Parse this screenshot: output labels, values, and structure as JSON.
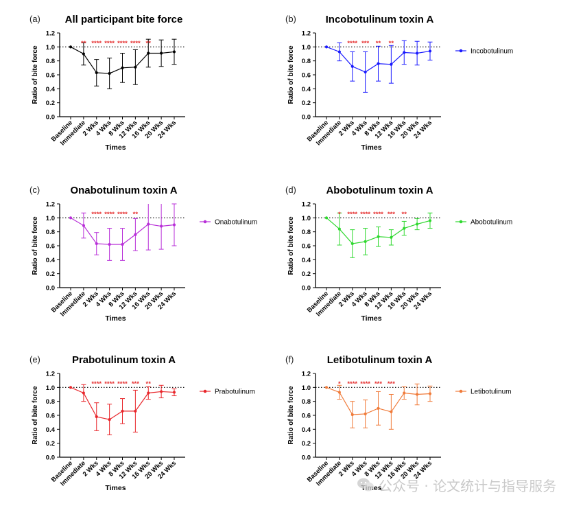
{
  "watermark": "公众号 · 论文统计与指导服务",
  "shared": {
    "categories": [
      "Baseline",
      "Immediate",
      "2 Wks",
      "4 Wks",
      "8 Wks",
      "12 Wks",
      "16 Wks",
      "20 Wks",
      "24 Wks"
    ],
    "ylabel": "Ratio of bite force",
    "xlabel": "Times",
    "yticks": [
      "0.0",
      "0.2",
      "0.4",
      "0.6",
      "0.8",
      "1.0",
      "1.2"
    ],
    "ylim": [
      0,
      1.2
    ],
    "reference_line": 1.0
  },
  "chart_data": [
    {
      "panel": "(a)",
      "type": "line",
      "title": "All participant bite force",
      "color": "#000000",
      "series": [
        {
          "name": "",
          "values": [
            1.0,
            0.9,
            0.63,
            0.62,
            0.7,
            0.71,
            0.91,
            0.91,
            0.93
          ],
          "error": [
            0,
            0.16,
            0.19,
            0.22,
            0.21,
            0.25,
            0.2,
            0.19,
            0.18
          ]
        }
      ],
      "stars": [
        "",
        "**",
        "****",
        "****",
        "****",
        "****",
        "**",
        "",
        ""
      ],
      "legend": null
    },
    {
      "panel": "(b)",
      "type": "line",
      "title": "Incobotulinum toxin A",
      "color": "#1a1aff",
      "series": [
        {
          "name": "Incobotulinum",
          "values": [
            1.0,
            0.93,
            0.72,
            0.64,
            0.76,
            0.75,
            0.92,
            0.91,
            0.94
          ],
          "error": [
            0,
            0.13,
            0.21,
            0.29,
            0.25,
            0.27,
            0.17,
            0.17,
            0.13
          ]
        }
      ],
      "stars": [
        "",
        "",
        "****",
        "***",
        "**",
        "**",
        "",
        "",
        ""
      ],
      "legend": "Incobotulinum"
    },
    {
      "panel": "(c)",
      "type": "line",
      "title": "Onabotulinum toxin A",
      "color": "#b82fd8",
      "series": [
        {
          "name": "Onabotulinum",
          "values": [
            1.0,
            0.89,
            0.63,
            0.62,
            0.62,
            0.76,
            0.91,
            0.88,
            0.9
          ],
          "error": [
            0,
            0.18,
            0.16,
            0.23,
            0.23,
            0.23,
            0.37,
            0.33,
            0.3
          ]
        }
      ],
      "stars": [
        "",
        "",
        "****",
        "****",
        "****",
        "**",
        "",
        "",
        ""
      ],
      "legend": "Onabotulinum"
    },
    {
      "panel": "(d)",
      "type": "line",
      "title": "Abobotulinum toxin A",
      "color": "#2fd82f",
      "series": [
        {
          "name": "Abobotulinum",
          "values": [
            1.0,
            0.84,
            0.63,
            0.66,
            0.73,
            0.72,
            0.85,
            0.91,
            0.96
          ],
          "error": [
            0,
            0.23,
            0.2,
            0.19,
            0.14,
            0.11,
            0.1,
            0.08,
            0.11
          ]
        }
      ],
      "stars": [
        "",
        "*",
        "****",
        "****",
        "****",
        "***",
        "**",
        "",
        ""
      ],
      "legend": "Abobotulinum"
    },
    {
      "panel": "(e)",
      "type": "line",
      "title": "Prabotulinum toxin A",
      "color": "#e8262b",
      "series": [
        {
          "name": "Prabotulinum",
          "values": [
            1.0,
            0.92,
            0.58,
            0.54,
            0.66,
            0.66,
            0.92,
            0.94,
            0.93
          ],
          "error": [
            0,
            0.12,
            0.2,
            0.22,
            0.18,
            0.3,
            0.09,
            0.09,
            0.05
          ]
        }
      ],
      "stars": [
        "",
        "",
        "****",
        "****",
        "****",
        "***",
        "**",
        "",
        ""
      ],
      "legend": "Prabotulinum"
    },
    {
      "panel": "(f)",
      "type": "line",
      "title": "Letibotulinum toxin A",
      "color": "#f07b3a",
      "series": [
        {
          "name": "Letibotulinum",
          "values": [
            1.0,
            0.93,
            0.61,
            0.62,
            0.7,
            0.65,
            0.92,
            0.9,
            0.91
          ],
          "error": [
            0,
            0.1,
            0.19,
            0.2,
            0.24,
            0.25,
            0.09,
            0.15,
            0.11
          ]
        }
      ],
      "stars": [
        "",
        "*",
        "****",
        "****",
        "***",
        "***",
        "",
        "",
        ""
      ],
      "legend": "Letibotulinum"
    }
  ]
}
